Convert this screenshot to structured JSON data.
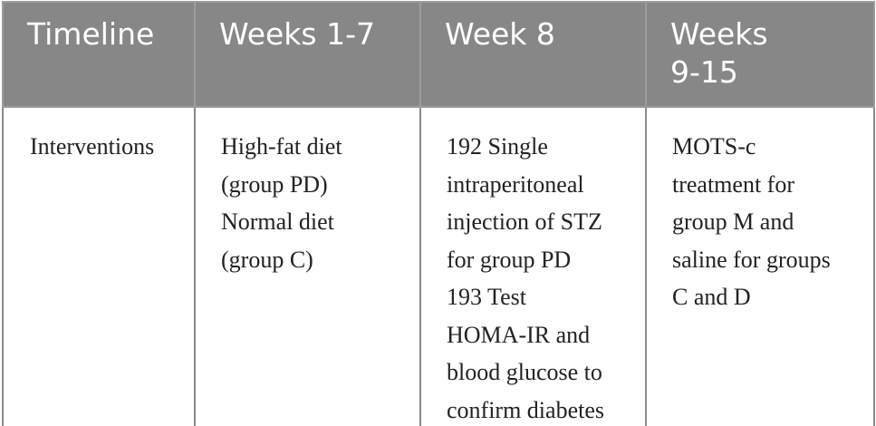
{
  "table": {
    "headers": [
      "Timeline",
      "Weeks 1-7",
      "Week 8",
      "Weeks\n9-15"
    ],
    "row": {
      "label": "Interventions",
      "weeks_1_7": [
        "High-fat diet",
        "(group PD)",
        "Normal diet",
        "(group C)"
      ],
      "week_8": [
        "192 Single",
        "intraperitoneal",
        "injection of STZ",
        "for group PD",
        "193 Test",
        "HOMA-IR and",
        "blood glucose to",
        "confirm diabetes"
      ],
      "weeks_9_15": [
        "MOTS-c",
        "treatment for",
        "group M and",
        "saline for groups",
        "C and D"
      ]
    }
  },
  "colors": {
    "header_bg": "#878787",
    "header_text": "#ffffff",
    "border": "#8a8a8a",
    "body_text": "#222222"
  }
}
